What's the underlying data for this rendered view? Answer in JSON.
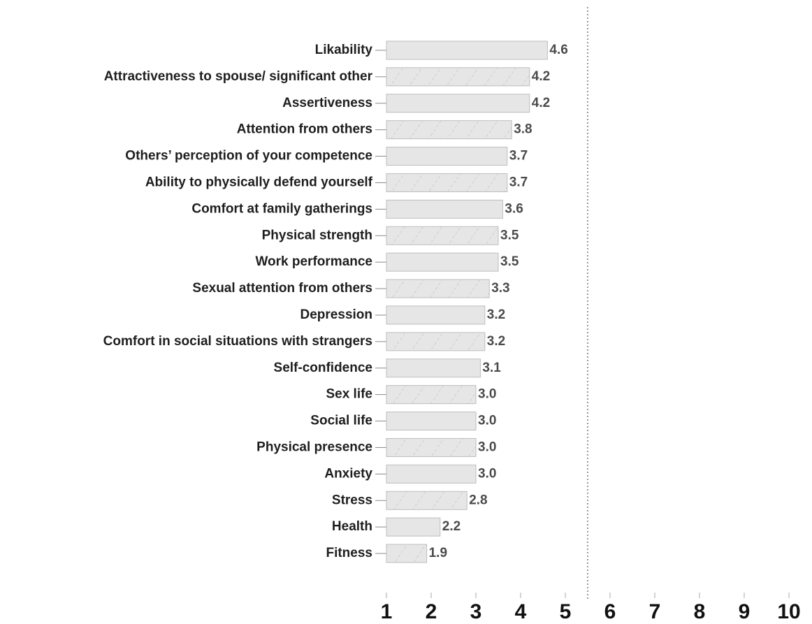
{
  "chart_data": {
    "type": "barh",
    "categories": [
      "Likability",
      "Attractiveness to spouse/ significant other",
      "Assertiveness",
      "Attention from others",
      "Others’ perception of your competence",
      "Ability to physically defend yourself",
      "Comfort at family gatherings",
      "Physical strength",
      "Work performance",
      "Sexual attention from others",
      "Depression",
      "Comfort in social situations with strangers",
      "Self-confidence",
      "Sex life",
      "Social life",
      "Physical presence",
      "Anxiety",
      "Stress",
      "Health",
      "Fitness"
    ],
    "values": [
      4.6,
      4.2,
      4.2,
      3.8,
      3.7,
      3.7,
      3.6,
      3.5,
      3.5,
      3.3,
      3.2,
      3.2,
      3.1,
      3.0,
      3.0,
      3.0,
      3.0,
      2.8,
      2.2,
      1.9
    ],
    "value_labels": [
      "4.6",
      "4.2",
      "4.2",
      "3.8",
      "3.7",
      "3.7",
      "3.6",
      "3.5",
      "3.5",
      "3.3",
      "3.2",
      "3.2",
      "3.1",
      "3.0",
      "3.0",
      "3.0",
      "3.0",
      "2.8",
      "2.2",
      "1.9"
    ],
    "color": "#e6e6e6",
    "xlim": [
      1,
      10
    ],
    "xticks": [
      1,
      2,
      3,
      4,
      5,
      6,
      7,
      8,
      9,
      10
    ],
    "reference_line": 5.5
  }
}
